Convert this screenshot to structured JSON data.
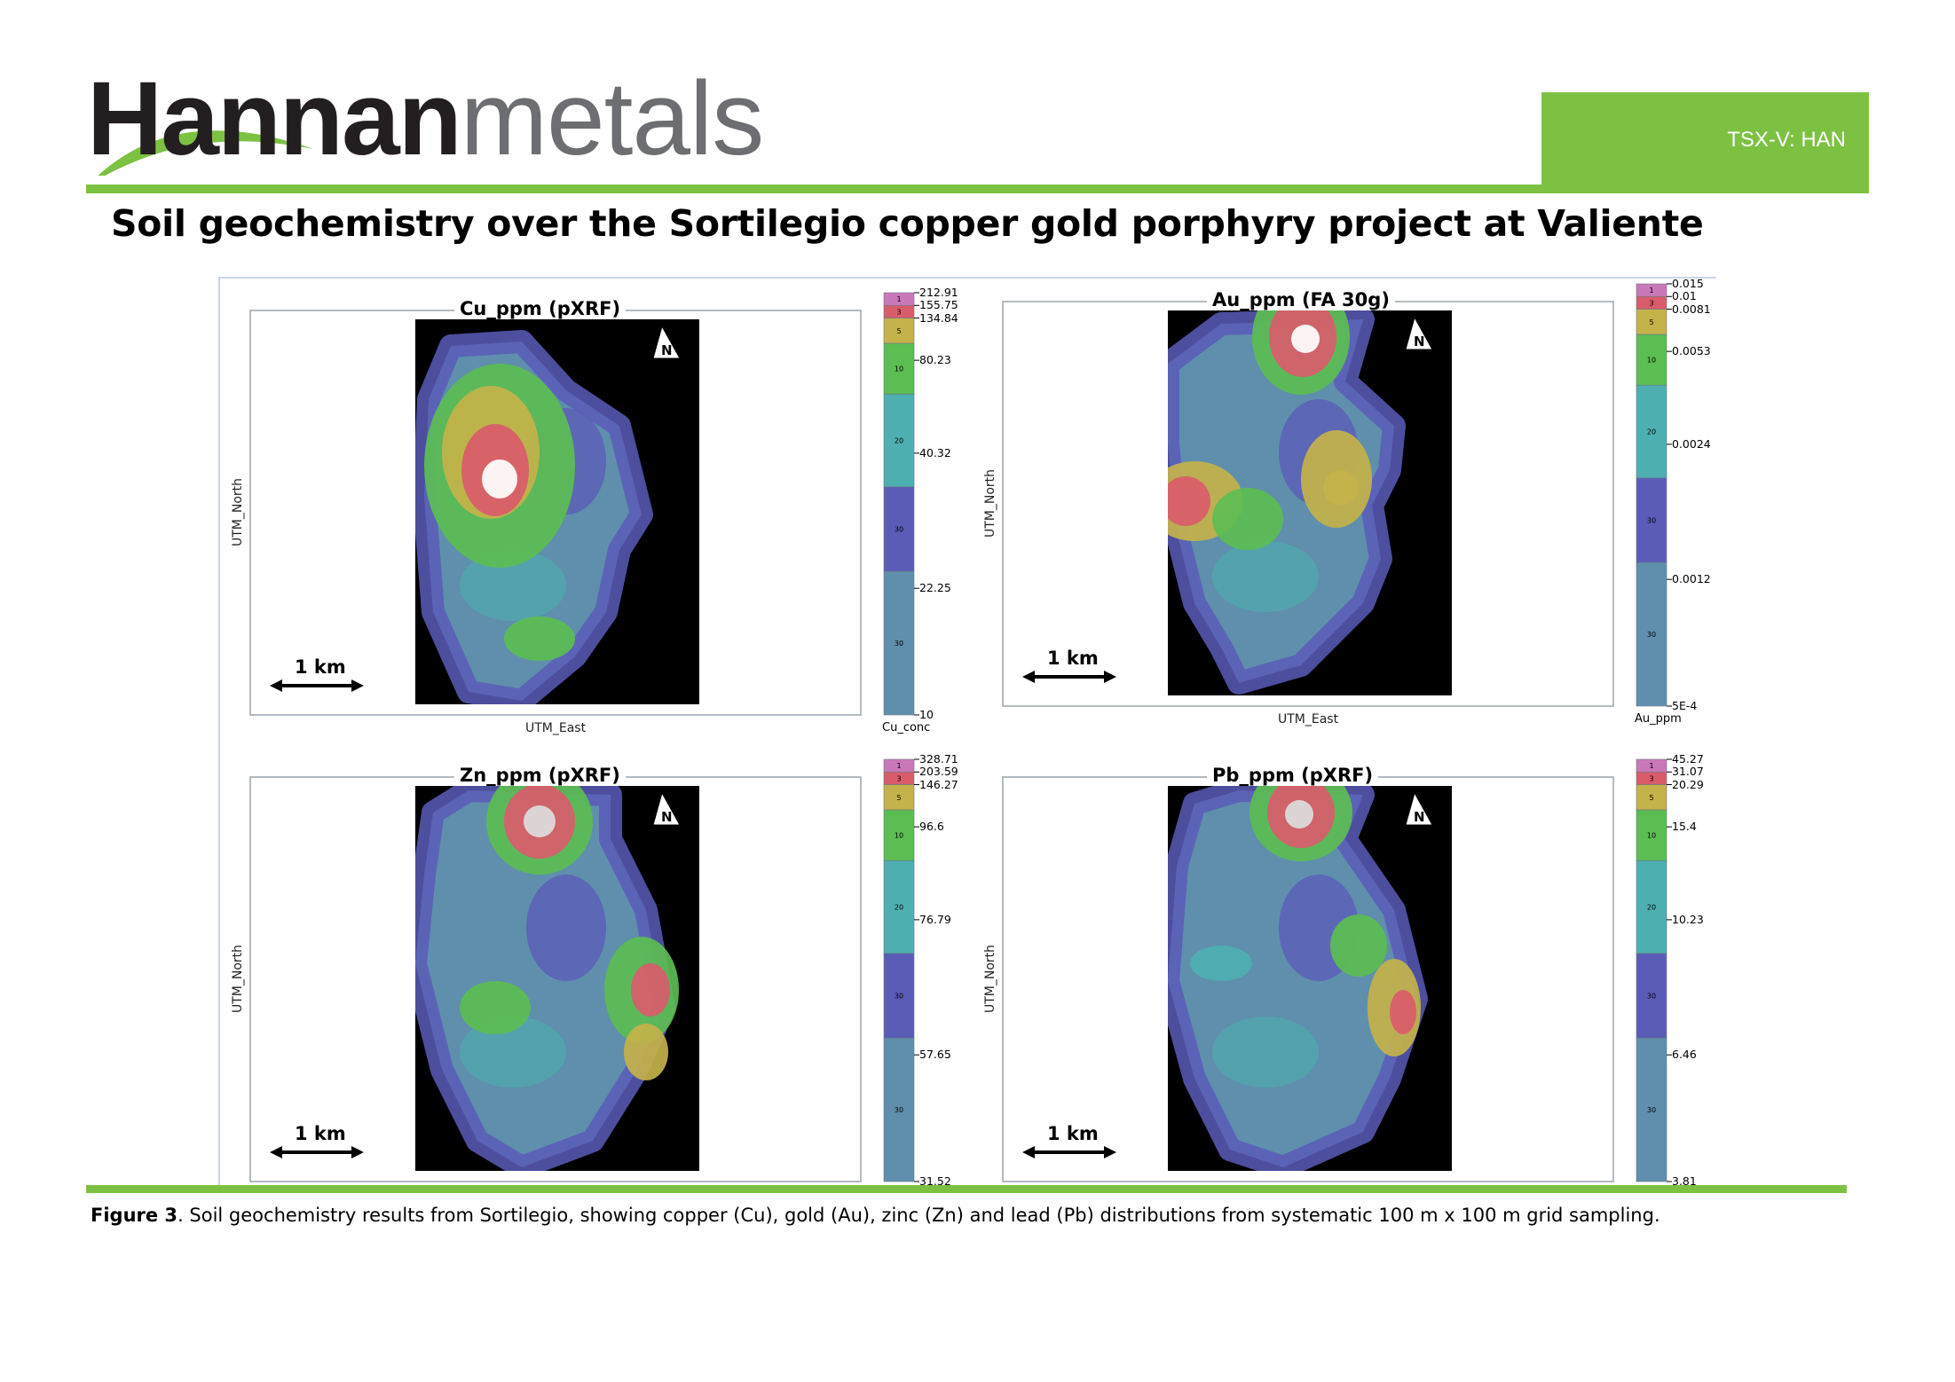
{
  "header": {
    "logo_primary": "Hannan",
    "logo_secondary": "metals",
    "ticker": "TSX-V: HAN",
    "brand_green": "#7dc142"
  },
  "page_title": "Soil geochemistry over the Sortilegio copper gold porphyry project at Valiente",
  "panels": [
    {
      "title": "Cu_ppm (pXRF)",
      "x_axis": "UTM_East",
      "y_axis": "UTM_North",
      "scale_bar": "1 km",
      "north_label": "N",
      "legend_title": "Cu_conc",
      "legend_values": [
        "212.91",
        "155.75",
        "134.84",
        "80.23",
        "40.32",
        "22.25",
        "10"
      ],
      "legend_bins": [
        {
          "pct": "1",
          "color": "#c978b8"
        },
        {
          "pct": "3",
          "color": "#d95c6b"
        },
        {
          "pct": "5",
          "color": "#c4b24a"
        },
        {
          "pct": "10",
          "color": "#5cbd52"
        },
        {
          "pct": "20",
          "color": "#4eafb0"
        },
        {
          "pct": "30",
          "color": "#5b5cb8"
        },
        {
          "pct": "30",
          "color": "#5f8fad"
        }
      ]
    },
    {
      "title": "Au_ppm (FA 30g)",
      "x_axis": "UTM_East",
      "y_axis": "UTM_North",
      "scale_bar": "1 km",
      "north_label": "N",
      "legend_title": "Au_ppm",
      "legend_values": [
        "0.015",
        "0.01",
        "0.0081",
        "0.0053",
        "0.0024",
        "0.0012",
        "5E-4"
      ],
      "legend_bins": [
        {
          "pct": "1",
          "color": "#c978b8"
        },
        {
          "pct": "3",
          "color": "#d95c6b"
        },
        {
          "pct": "5",
          "color": "#c4b24a"
        },
        {
          "pct": "10",
          "color": "#5cbd52"
        },
        {
          "pct": "20",
          "color": "#4eafb0"
        },
        {
          "pct": "30",
          "color": "#5b5cb8"
        },
        {
          "pct": "30",
          "color": "#5f8fad"
        }
      ]
    },
    {
      "title": "Zn_ppm (pXRF)",
      "x_axis": "",
      "y_axis": "UTM_North",
      "scale_bar": "1 km",
      "north_label": "N",
      "legend_title": "",
      "legend_values": [
        "328.71",
        "203.59",
        "146.27",
        "96.6",
        "76.79",
        "57.65",
        "31.52"
      ],
      "legend_bins": [
        {
          "pct": "1",
          "color": "#c978b8"
        },
        {
          "pct": "3",
          "color": "#d95c6b"
        },
        {
          "pct": "5",
          "color": "#c4b24a"
        },
        {
          "pct": "10",
          "color": "#5cbd52"
        },
        {
          "pct": "20",
          "color": "#4eafb0"
        },
        {
          "pct": "30",
          "color": "#5b5cb8"
        },
        {
          "pct": "30",
          "color": "#5f8fad"
        }
      ]
    },
    {
      "title": "Pb_ppm (pXRF)",
      "x_axis": "",
      "y_axis": "UTM_North",
      "scale_bar": "1 km",
      "north_label": "N",
      "legend_title": "",
      "legend_values": [
        "45.27",
        "31.07",
        "20.29",
        "15.4",
        "10.23",
        "6.46",
        "3.81"
      ],
      "legend_bins": [
        {
          "pct": "1",
          "color": "#c978b8"
        },
        {
          "pct": "3",
          "color": "#d95c6b"
        },
        {
          "pct": "5",
          "color": "#c4b24a"
        },
        {
          "pct": "10",
          "color": "#5cbd52"
        },
        {
          "pct": "20",
          "color": "#4eafb0"
        },
        {
          "pct": "30",
          "color": "#5b5cb8"
        },
        {
          "pct": "30",
          "color": "#5f8fad"
        }
      ]
    }
  ],
  "caption": {
    "label": "Figure 3",
    "text": ". Soil geochemistry results from Sortilegio, showing copper (Cu), gold (Au), zinc (Zn) and lead (Pb) distributions from systematic 100 m x 100 m grid sampling."
  }
}
